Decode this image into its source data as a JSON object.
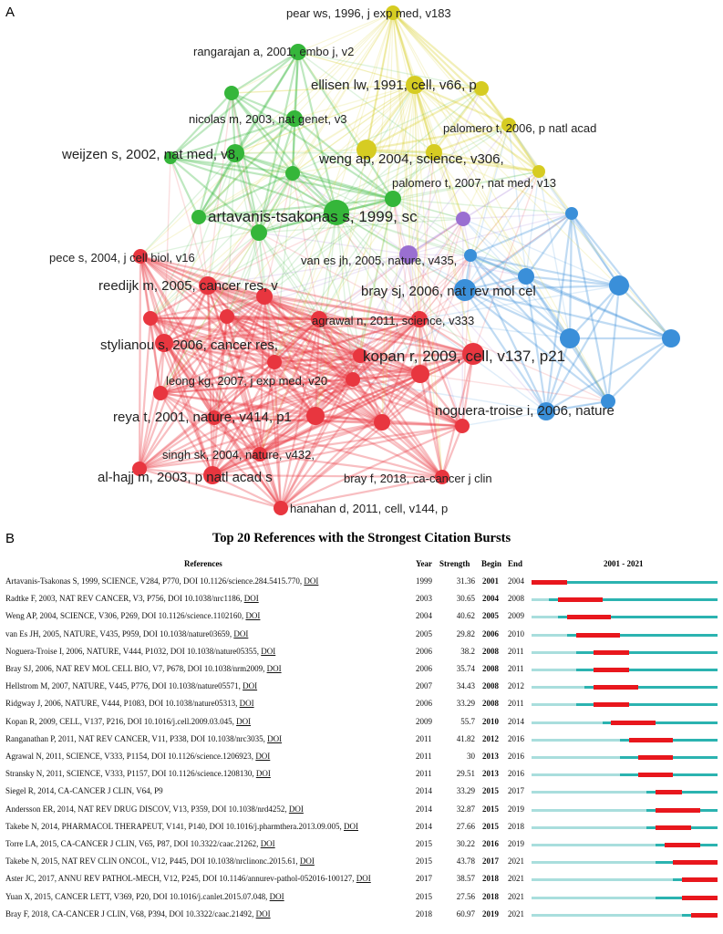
{
  "panel_a": {
    "letter": "A",
    "chart_data": {
      "type": "network",
      "clusters": [
        {
          "name": "red",
          "color": "#e8363f"
        },
        {
          "name": "green",
          "color": "#35b63a"
        },
        {
          "name": "blue",
          "color": "#3a8fd9"
        },
        {
          "name": "yellow",
          "color": "#d6cc22"
        },
        {
          "name": "purple",
          "color": "#9a6fd1"
        }
      ],
      "labeled_nodes": [
        {
          "label": "pear ws, 1996, j exp med, v183",
          "cluster": "yellow"
        },
        {
          "label": "rangarajan a, 2001, embo j, v2",
          "cluster": "green"
        },
        {
          "label": "ellisen lw, 1991, cell, v66, p",
          "cluster": "yellow"
        },
        {
          "label": "nicolas m, 2003, nat genet, v3",
          "cluster": "green"
        },
        {
          "label": "palomero t, 2006, p natl acad",
          "cluster": "yellow"
        },
        {
          "label": "weijzen s, 2002, nat med, v8,",
          "cluster": "green"
        },
        {
          "label": "weng ap, 2004, science, v306,",
          "cluster": "yellow"
        },
        {
          "label": "palomero t, 2007, nat med, v13",
          "cluster": "yellow"
        },
        {
          "label": "artavanis-tsakonas s, 1999, sc",
          "cluster": "green"
        },
        {
          "label": "pece s, 2004, j cell biol, v16",
          "cluster": "red"
        },
        {
          "label": "van es jh, 2005, nature, v435,",
          "cluster": "purple"
        },
        {
          "label": "reedijk m, 2005, cancer res, v",
          "cluster": "red"
        },
        {
          "label": "bray sj, 2006, nat rev mol cel",
          "cluster": "blue"
        },
        {
          "label": "agrawal n, 2011, science, v333",
          "cluster": "red"
        },
        {
          "label": "stylianou s, 2006, cancer res,",
          "cluster": "red"
        },
        {
          "label": "kopan r, 2009, cell, v137, p21",
          "cluster": "red"
        },
        {
          "label": "leong kg, 2007, j exp med, v20",
          "cluster": "red"
        },
        {
          "label": "reya t, 2001, nature, v414, p1",
          "cluster": "red"
        },
        {
          "label": "noguera-troise i, 2006, nature",
          "cluster": "blue"
        },
        {
          "label": "singh sk, 2004, nature, v432,",
          "cluster": "red"
        },
        {
          "label": "al-hajj m, 2003, p natl acad s",
          "cluster": "red"
        },
        {
          "label": "bray f, 2018, ca-cancer j clin",
          "cluster": "red"
        },
        {
          "label": "hanahan d, 2011, cell, v144, p",
          "cluster": "red"
        }
      ]
    }
  },
  "panel_b": {
    "letter": "B",
    "chart_data": {
      "type": "table",
      "title": "Top 20 References with the Strongest Citation Bursts",
      "columns": [
        "References",
        "Year",
        "Strength",
        "Begin",
        "End",
        "2001 - 2021"
      ],
      "timeline_range": [
        2001,
        2021
      ],
      "colors": {
        "burst": "#e8171d",
        "active": "#2bb3b0",
        "inactive": "#a9dedd"
      },
      "doi_link_text": "DOI",
      "rows": [
        {
          "reference": "Artavanis-Tsakonas S, 1999, SCIENCE, V284, P770, DOI 10.1126/science.284.5415.770,",
          "year": 1999,
          "strength": "31.36",
          "begin": 2001,
          "end": 2004
        },
        {
          "reference": "Radtke F, 2003, NAT REV CANCER, V3, P756, DOI 10.1038/nrc1186,",
          "year": 2003,
          "strength": "30.65",
          "begin": 2004,
          "end": 2008
        },
        {
          "reference": "Weng AP, 2004, SCIENCE, V306, P269, DOI 10.1126/science.1102160,",
          "year": 2004,
          "strength": "40.62",
          "begin": 2005,
          "end": 2009
        },
        {
          "reference": "van Es JH, 2005, NATURE, V435, P959, DOI 10.1038/nature03659,",
          "year": 2005,
          "strength": "29.82",
          "begin": 2006,
          "end": 2010
        },
        {
          "reference": "Noguera-Troise I, 2006, NATURE, V444, P1032, DOI 10.1038/nature05355,",
          "year": 2006,
          "strength": "38.2",
          "begin": 2008,
          "end": 2011
        },
        {
          "reference": "Bray SJ, 2006, NAT REV MOL CELL BIO, V7, P678, DOI 10.1038/nrm2009,",
          "year": 2006,
          "strength": "35.74",
          "begin": 2008,
          "end": 2011
        },
        {
          "reference": "Hellstrom M, 2007, NATURE, V445, P776, DOI 10.1038/nature05571,",
          "year": 2007,
          "strength": "34.43",
          "begin": 2008,
          "end": 2012
        },
        {
          "reference": "Ridgway J, 2006, NATURE, V444, P1083, DOI 10.1038/nature05313,",
          "year": 2006,
          "strength": "33.29",
          "begin": 2008,
          "end": 2011
        },
        {
          "reference": "Kopan R, 2009, CELL, V137, P216, DOI 10.1016/j.cell.2009.03.045,",
          "year": 2009,
          "strength": "55.7",
          "begin": 2010,
          "end": 2014
        },
        {
          "reference": "Ranganathan P, 2011, NAT REV CANCER, V11, P338, DOI 10.1038/nrc3035,",
          "year": 2011,
          "strength": "41.82",
          "begin": 2012,
          "end": 2016
        },
        {
          "reference": "Agrawal N, 2011, SCIENCE, V333, P1154, DOI 10.1126/science.1206923,",
          "year": 2011,
          "strength": "30",
          "begin": 2013,
          "end": 2016
        },
        {
          "reference": "Stransky N, 2011, SCIENCE, V333, P1157, DOI 10.1126/science.1208130,",
          "year": 2011,
          "strength": "29.51",
          "begin": 2013,
          "end": 2016
        },
        {
          "reference": "Siegel R, 2014, CA-CANCER J CLIN, V64, P9",
          "year": 2014,
          "strength": "33.29",
          "begin": 2015,
          "end": 2017,
          "no_doi": true
        },
        {
          "reference": "Andersson ER, 2014, NAT REV DRUG DISCOV, V13, P359, DOI 10.1038/nrd4252,",
          "year": 2014,
          "strength": "32.87",
          "begin": 2015,
          "end": 2019
        },
        {
          "reference": "Takebe N, 2014, PHARMACOL THERAPEUT, V141, P140, DOI 10.1016/j.pharmthera.2013.09.005,",
          "year": 2014,
          "strength": "27.66",
          "begin": 2015,
          "end": 2018
        },
        {
          "reference": "Torre LA, 2015, CA-CANCER J CLIN, V65, P87, DOI 10.3322/caac.21262,",
          "year": 2015,
          "strength": "30.22",
          "begin": 2016,
          "end": 2019
        },
        {
          "reference": "Takebe N, 2015, NAT REV CLIN ONCOL, V12, P445, DOI 10.1038/nrclinonc.2015.61,",
          "year": 2015,
          "strength": "43.78",
          "begin": 2017,
          "end": 2021
        },
        {
          "reference": "Aster JC, 2017, ANNU REV PATHOL-MECH, V12, P245, DOI 10.1146/annurev-pathol-052016-100127,",
          "year": 2017,
          "strength": "38.57",
          "begin": 2018,
          "end": 2021
        },
        {
          "reference": "Yuan X, 2015, CANCER LETT, V369, P20, DOI 10.1016/j.canlet.2015.07.048,",
          "year": 2015,
          "strength": "27.56",
          "begin": 2018,
          "end": 2021
        },
        {
          "reference": "Bray F, 2018, CA-CANCER J CLIN, V68, P394, DOI 10.3322/caac.21492,",
          "year": 2018,
          "strength": "60.97",
          "begin": 2019,
          "end": 2021
        }
      ]
    }
  }
}
